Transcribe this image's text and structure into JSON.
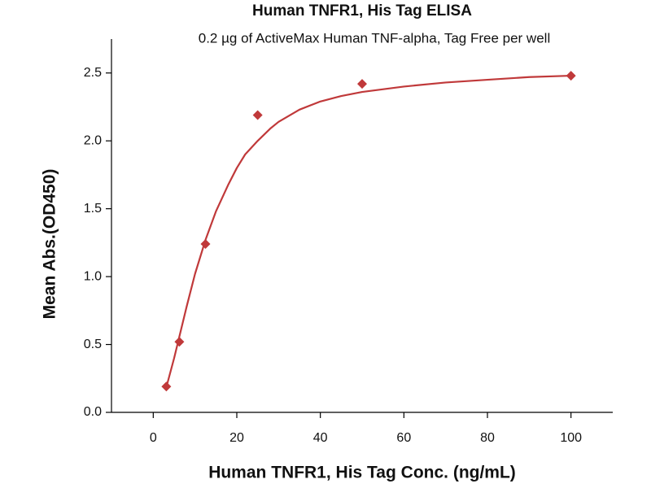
{
  "chart_data": {
    "type": "scatter",
    "title": "Human TNFR1, His Tag ELISA",
    "subtitle": "0.2 µg of ActiveMax Human TNF-alpha, Tag Free per well",
    "x_label": "Human TNFR1, His Tag Conc. (ng/mL)",
    "y_label": "Mean Abs.(OD450)",
    "series": [
      {
        "type": "scatter",
        "color": "#c0393a",
        "x": [
          3.125,
          6.25,
          12.5,
          25,
          50,
          100
        ],
        "values": [
          0.19,
          0.52,
          1.24,
          2.19,
          2.42,
          2.48
        ]
      },
      {
        "type": "line",
        "color": "#c0393a",
        "x": [
          3,
          5,
          8,
          10,
          12.5,
          15,
          18,
          20,
          22,
          25,
          28,
          30,
          35,
          40,
          45,
          50,
          60,
          70,
          80,
          90,
          100
        ],
        "values": [
          0.17,
          0.4,
          0.78,
          1.02,
          1.27,
          1.48,
          1.68,
          1.8,
          1.9,
          2.0,
          2.09,
          2.14,
          2.23,
          2.29,
          2.33,
          2.36,
          2.4,
          2.43,
          2.45,
          2.47,
          2.48
        ]
      }
    ],
    "xlim": [
      -10,
      110
    ],
    "xticks": [
      0,
      20,
      40,
      60,
      80,
      100
    ],
    "ylim": [
      0,
      2.75
    ],
    "yticks": [
      {
        "value": 0,
        "label": "0.0"
      },
      0.5,
      {
        "value": 1,
        "label": "1.0"
      },
      1.5,
      {
        "value": 2,
        "label": "2.0"
      },
      2.5
    ]
  }
}
